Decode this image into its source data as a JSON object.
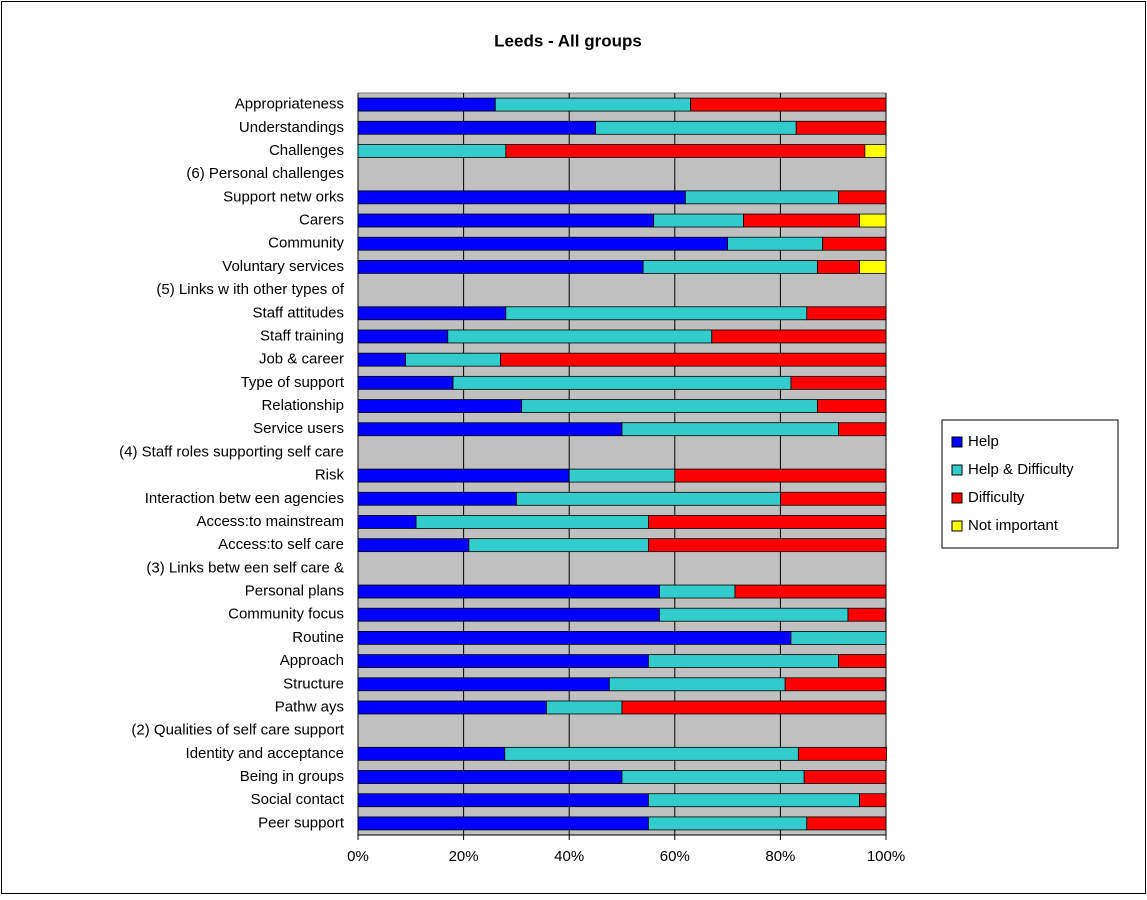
{
  "chart_data": {
    "type": "stacked_barh",
    "title": "Leeds - All groups",
    "categories": [
      "Appropriateness",
      "Understandings",
      "Challenges",
      "(6) Personal challenges",
      "Support netw orks",
      "Carers",
      "Community",
      "Voluntary services",
      "(5) Links w ith other types of",
      "Staff attitudes",
      "Staff training",
      "Job & career",
      "Type of support",
      "Relationship",
      "Service users",
      "(4) Staff roles supporting self care",
      "Risk",
      "Interaction betw een agencies",
      "Access:to mainstream",
      "Access:to self care",
      "(3) Links betw een self care &",
      "Personal plans",
      "Community focus",
      "Routine",
      "Approach",
      "Structure",
      "Pathw ays",
      "(2) Qualities of self care support",
      "Identity and acceptance",
      "Being in groups",
      "Social contact",
      "Peer support"
    ],
    "series": [
      {
        "name": "Help",
        "color": "#0000ff",
        "values": [
          26,
          45,
          0,
          null,
          62,
          56,
          70,
          54,
          null,
          28,
          17,
          9,
          18,
          31,
          50,
          null,
          40,
          30,
          11,
          21,
          null,
          57.1,
          57.1,
          82,
          55,
          47.6,
          35.7,
          null,
          27.8,
          50,
          55,
          55
        ]
      },
      {
        "name": "Help & Difficulty",
        "color": "#33cccc",
        "values": [
          37,
          38,
          28,
          null,
          29,
          17,
          18,
          33,
          null,
          57,
          50,
          18,
          64,
          56,
          41,
          null,
          20,
          50,
          44,
          34,
          null,
          14.3,
          35.7,
          18,
          36,
          33.3,
          14.3,
          null,
          55.6,
          34.5,
          40,
          30
        ]
      },
      {
        "name": "Difficulty",
        "color": "#ff0000",
        "values": [
          37,
          17,
          68,
          null,
          9,
          22,
          12,
          8,
          null,
          15,
          33,
          73,
          18,
          13,
          9,
          null,
          40,
          20,
          45,
          45,
          null,
          28.6,
          7.1,
          0,
          9,
          19,
          50,
          null,
          16.7,
          15.5,
          5,
          15
        ]
      },
      {
        "name": "Not important",
        "color": "#ffff00",
        "values": [
          0,
          0,
          4,
          null,
          0,
          5,
          0,
          5,
          null,
          0,
          0,
          0,
          0,
          0,
          0,
          null,
          0,
          0,
          0,
          0,
          null,
          0,
          0,
          0,
          0,
          0,
          0,
          null,
          0,
          0,
          0,
          0
        ]
      }
    ],
    "xlim": [
      0,
      100
    ],
    "xticks": [
      {
        "value": 0,
        "label": "0%"
      },
      {
        "value": 20,
        "label": "20%"
      },
      {
        "value": 40,
        "label": "40%"
      },
      {
        "value": 60,
        "label": "60%"
      },
      {
        "value": 80,
        "label": "80%"
      },
      {
        "value": 100,
        "label": "100%"
      }
    ],
    "grid": true,
    "legend": "right"
  }
}
